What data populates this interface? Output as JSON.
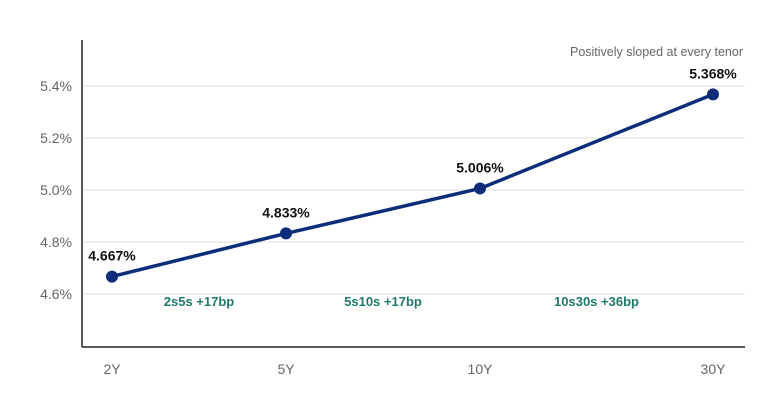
{
  "chart_data": {
    "type": "line",
    "categories": [
      "2Y",
      "5Y",
      "10Y",
      "30Y"
    ],
    "values": [
      4.667,
      4.833,
      5.006,
      5.368
    ],
    "data_labels": [
      "4.667%",
      "4.833%",
      "5.006%",
      "5.368%"
    ],
    "y_ticks": [
      4.6,
      4.8,
      5.0,
      5.2,
      5.4
    ],
    "y_tick_labels": [
      "4.6%",
      "4.8%",
      "5.0%",
      "5.2%",
      "5.4%"
    ],
    "ylim": [
      4.4,
      5.6
    ],
    "grid": "horizontal",
    "annotation": "Positively sloped at every tenor",
    "spreads": [
      {
        "label": "2s5s +17bp",
        "between": [
          "2Y",
          "5Y"
        ]
      },
      {
        "label": "5s10s +17bp",
        "between": [
          "5Y",
          "10Y"
        ]
      },
      {
        "label": "10s30s +36bp",
        "between": [
          "10Y",
          "30Y"
        ]
      }
    ],
    "colors": {
      "line": "#0b2d7a",
      "spread_text": "#1f7a6b",
      "grid": "#dddddd",
      "axis": "#222222"
    }
  }
}
